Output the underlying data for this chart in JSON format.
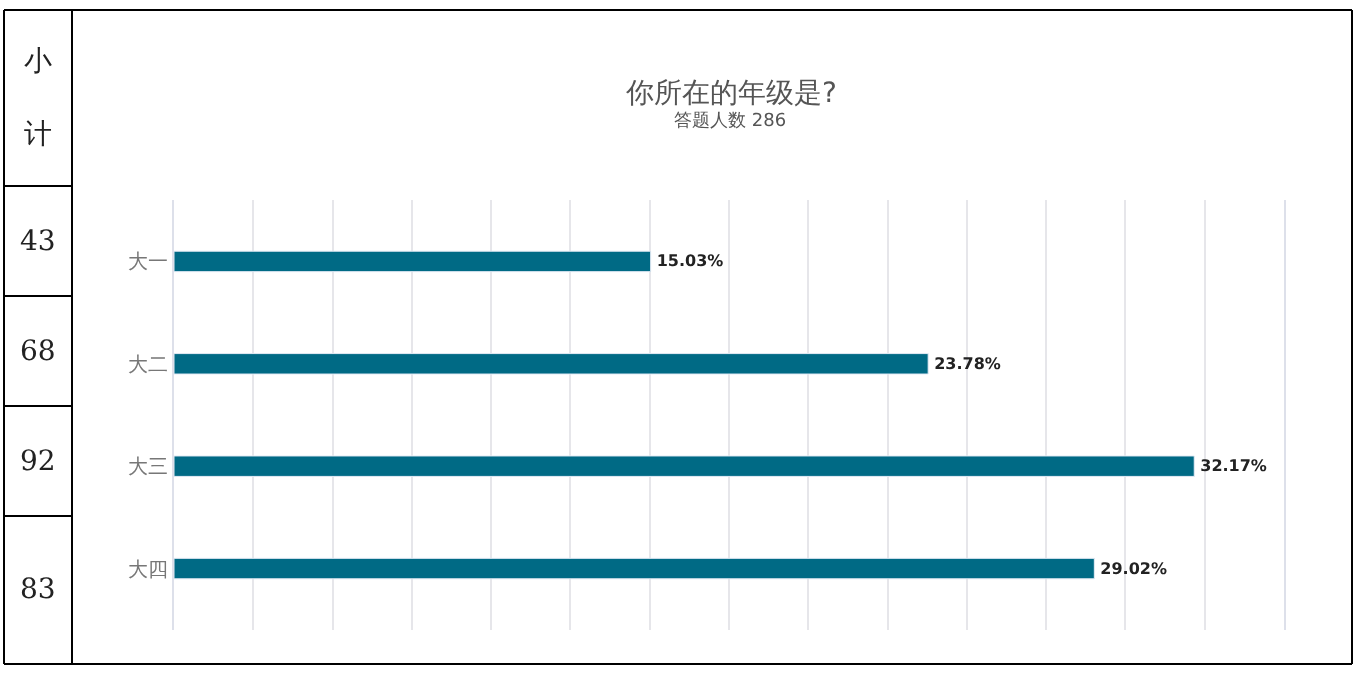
{
  "chart_data": {
    "type": "bar",
    "orientation": "horizontal",
    "title": "你所在的年级是?",
    "subtitle": "答题人数 286",
    "categories": [
      "大一",
      "大二",
      "大三",
      "大四"
    ],
    "values": [
      15.03,
      23.78,
      32.17,
      29.02
    ],
    "value_labels": [
      "15.03%",
      "23.78%",
      "32.17%",
      "29.02%"
    ],
    "color": "#006a85",
    "xlim": [
      0,
      35
    ],
    "xticks": [
      {
        "value": 0,
        "label": null
      },
      {
        "value": 2.5,
        "label": null
      },
      {
        "value": 5,
        "label": null
      },
      {
        "value": 7.5,
        "label": null
      },
      {
        "value": 10,
        "label": null
      },
      {
        "value": 12.5,
        "label": null
      },
      {
        "value": 15,
        "label": null
      },
      {
        "value": 17.5,
        "label": null
      },
      {
        "value": 20,
        "label": null
      },
      {
        "value": 22.5,
        "label": null
      },
      {
        "value": 25,
        "label": null
      },
      {
        "value": 27.5,
        "label": null
      },
      {
        "value": 30,
        "label": null
      },
      {
        "value": 32.5,
        "label": null
      },
      {
        "value": 35,
        "label": null
      }
    ],
    "tick_labels": "y",
    "grid": "x",
    "annotations": [
      "小计",
      "43",
      "68",
      "92",
      "83"
    ]
  }
}
